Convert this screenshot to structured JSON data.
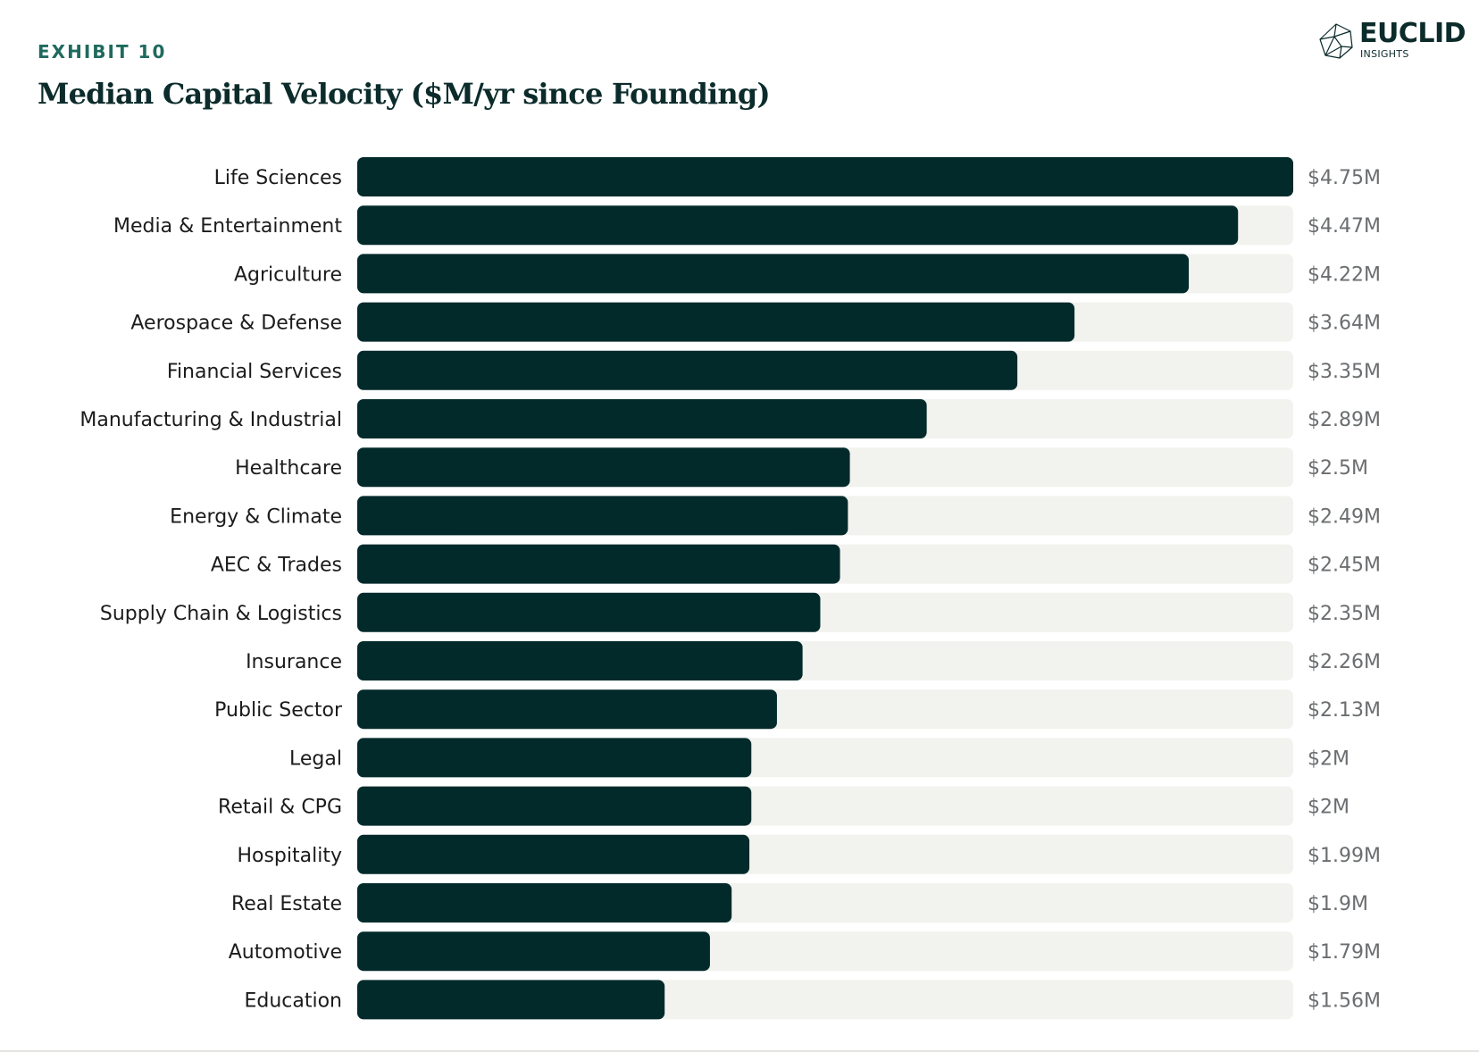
{
  "header": {
    "exhibit": "EXHIBIT 10",
    "title": "Median Capital Velocity ($M/yr since Founding)"
  },
  "logo": {
    "name": "EUCLID",
    "sub": "INSIGHTS"
  },
  "colors": {
    "bar": "#032a2b",
    "track": "#f2f2ee",
    "label": "#1b1b1b",
    "value": "#6b6e70",
    "accent": "#1f6a5e"
  },
  "chart_data": {
    "type": "bar",
    "orientation": "horizontal",
    "title": "Median Capital Velocity ($M/yr since Founding)",
    "xlabel": "",
    "ylabel": "",
    "xlim": [
      0,
      4.75
    ],
    "grid": false,
    "categories": [
      "Life Sciences",
      "Media & Entertainment",
      "Agriculture",
      "Aerospace & Defense",
      "Financial Services",
      "Manufacturing & Industrial",
      "Healthcare",
      "Energy & Climate",
      "AEC & Trades",
      "Supply Chain & Logistics",
      "Insurance",
      "Public Sector",
      "Legal",
      "Retail & CPG",
      "Hospitality",
      "Real Estate",
      "Automotive",
      "Education"
    ],
    "values": [
      4.75,
      4.47,
      4.22,
      3.64,
      3.35,
      2.89,
      2.5,
      2.49,
      2.45,
      2.35,
      2.26,
      2.13,
      2.0,
      2.0,
      1.99,
      1.9,
      1.79,
      1.56
    ],
    "value_labels": [
      "$4.75M",
      "$4.47M",
      "$4.22M",
      "$3.64M",
      "$3.35M",
      "$2.89M",
      "$2.5M",
      "$2.49M",
      "$2.45M",
      "$2.35M",
      "$2.26M",
      "$2.13M",
      "$2M",
      "$2M",
      "$1.99M",
      "$1.9M",
      "$1.79M",
      "$1.56M"
    ]
  }
}
